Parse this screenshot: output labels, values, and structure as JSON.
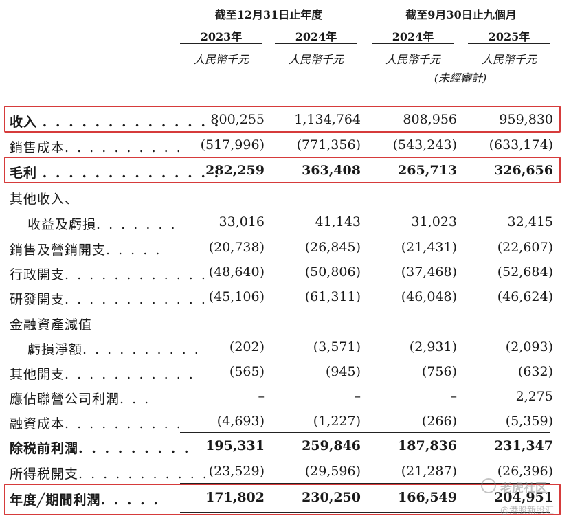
{
  "header": {
    "group_fy": "截至12月31日止年度",
    "group_9m": "截至9月30日止九個月",
    "years": [
      "2023年",
      "2024年",
      "2024年",
      "2025年"
    ],
    "unit": "人民幣千元",
    "unaudited": "(未經審計)"
  },
  "rows": [
    {
      "label": "收入",
      "values": [
        "800,255",
        "1,134,764",
        "808,956",
        "959,830"
      ]
    },
    {
      "label": "銷售成本",
      "values": [
        "(517,996)",
        "(771,356)",
        "(543,243)",
        "(633,174)"
      ]
    },
    {
      "label": "毛利",
      "values": [
        "282,259",
        "363,408",
        "265,713",
        "326,656"
      ]
    },
    {
      "label": "其他收入、",
      "values": []
    },
    {
      "label": "收益及虧損",
      "values": [
        "33,016",
        "41,143",
        "31,023",
        "32,415"
      ]
    },
    {
      "label": "銷售及營銷開支",
      "values": [
        "(20,738)",
        "(26,845)",
        "(21,431)",
        "(22,607)"
      ]
    },
    {
      "label": "行政開支",
      "values": [
        "(48,640)",
        "(50,806)",
        "(37,468)",
        "(52,684)"
      ]
    },
    {
      "label": "研發開支",
      "values": [
        "(45,106)",
        "(61,311)",
        "(46,048)",
        "(46,624)"
      ]
    },
    {
      "label": "金融資產減值",
      "values": []
    },
    {
      "label": "虧損淨額",
      "values": [
        "(202)",
        "(3,571)",
        "(2,931)",
        "(2,093)"
      ]
    },
    {
      "label": "其他開支",
      "values": [
        "(565)",
        "(945)",
        "(756)",
        "(632)"
      ]
    },
    {
      "label": "應佔聯營公司利潤",
      "values": [
        "–",
        "–",
        "–",
        "2,275"
      ]
    },
    {
      "label": "融資成本",
      "values": [
        "(4,693)",
        "(1,227)",
        "(266)",
        "(5,359)"
      ]
    },
    {
      "label": "除税前利潤",
      "values": [
        "195,331",
        "259,846",
        "187,836",
        "231,347"
      ]
    },
    {
      "label": "所得税開支",
      "values": [
        "(23,529)",
        "(29,596)",
        "(21,287)",
        "(26,396)"
      ]
    },
    {
      "label": "年度╱期間利潤",
      "values": [
        "171,802",
        "230,250",
        "166,549",
        "204,951"
      ]
    }
  ],
  "leaders": [
    ". . . . . . . . . . . . . .",
    ". . . . . . . . . .",
    ". . . . . . . . . . . . . .",
    ". . . . . . .",
    ". . . . .",
    ". . . . . . . . . . . .",
    ". . . . . . . . . . . .",
    ". . . . . . . . . .",
    ". . . . . . . . . . .",
    ". . .",
    ". . . . . . . . . .",
    ". . . . . . . . .",
    ". . . . . . . . . . .",
    ". . . . ."
  ],
  "watermark": {
    "brand": "老虎社区",
    "sub": "@港股新股汇"
  },
  "colors": {
    "highlight": "#d63b3b",
    "text": "#1a1a1a"
  }
}
